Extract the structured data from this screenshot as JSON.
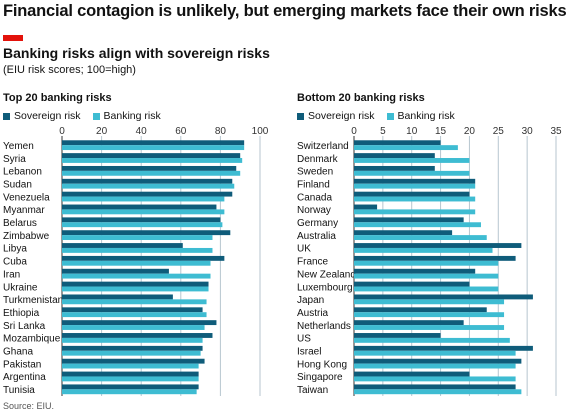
{
  "title": "Financial contagion is unlikely, but emerging markets face their own risks",
  "chart_title": "Banking risks align with sovereign risks",
  "chart_subtitle": "(EIU risk scores; 100=high)",
  "source": "Source: EIU.",
  "colors": {
    "sovereign": "#0f5c7a",
    "banking": "#3ebcd2",
    "red_tag": "#e3120b",
    "grid": "#b7c6cf"
  },
  "legend": {
    "sovereign_label": "Sovereign risk",
    "banking_label": "Banking risk"
  },
  "chart_data": [
    {
      "type": "bar",
      "orientation": "horizontal",
      "title": "Top 20 banking risks",
      "xlim": [
        0,
        100
      ],
      "ticks": [
        0,
        20,
        40,
        60,
        80,
        100
      ],
      "grid": true,
      "legend": "top-left",
      "categories": [
        "Yemen",
        "Syria",
        "Lebanon",
        "Sudan",
        "Venezuela",
        "Myanmar",
        "Belarus",
        "Zimbabwe",
        "Libya",
        "Cuba",
        "Iran",
        "Ukraine",
        "Turkmenistan",
        "Ethiopia",
        "Sri Lanka",
        "Mozambique",
        "Ghana",
        "Pakistan",
        "Argentina",
        "Tunisia"
      ],
      "series": [
        {
          "name": "Sovereign risk",
          "values": [
            92,
            90,
            88,
            86,
            86,
            78,
            80,
            85,
            61,
            82,
            54,
            74,
            56,
            71,
            78,
            76,
            71,
            72,
            69,
            69
          ]
        },
        {
          "name": "Banking risk",
          "values": [
            92,
            91,
            90,
            87,
            82,
            82,
            81,
            76,
            76,
            75,
            75,
            74,
            73,
            73,
            72,
            71,
            70,
            69,
            69,
            68
          ]
        }
      ]
    },
    {
      "type": "bar",
      "orientation": "horizontal",
      "title": "Bottom 20 banking risks",
      "xlim": [
        0,
        35
      ],
      "ticks": [
        0,
        5,
        10,
        15,
        20,
        25,
        30,
        35
      ],
      "grid": true,
      "legend": "top-left",
      "categories": [
        "Switzerland",
        "Denmark",
        "Sweden",
        "Finland",
        "Canada",
        "Norway",
        "Germany",
        "Australia",
        "UK",
        "France",
        "New Zealand",
        "Luxembourg",
        "Japan",
        "Austria",
        "Netherlands",
        "US",
        "Israel",
        "Hong Kong",
        "Singapore",
        "Taiwan"
      ],
      "series": [
        {
          "name": "Sovereign risk",
          "values": [
            15,
            14,
            14,
            21,
            20,
            4,
            19,
            17,
            29,
            28,
            21,
            20,
            31,
            23,
            19,
            15,
            31,
            29,
            20,
            28
          ]
        },
        {
          "name": "Banking risk",
          "values": [
            18,
            20,
            20,
            21,
            21,
            21,
            22,
            23,
            24,
            25,
            25,
            25,
            26,
            26,
            26,
            27,
            28,
            28,
            28,
            29
          ]
        }
      ]
    }
  ]
}
